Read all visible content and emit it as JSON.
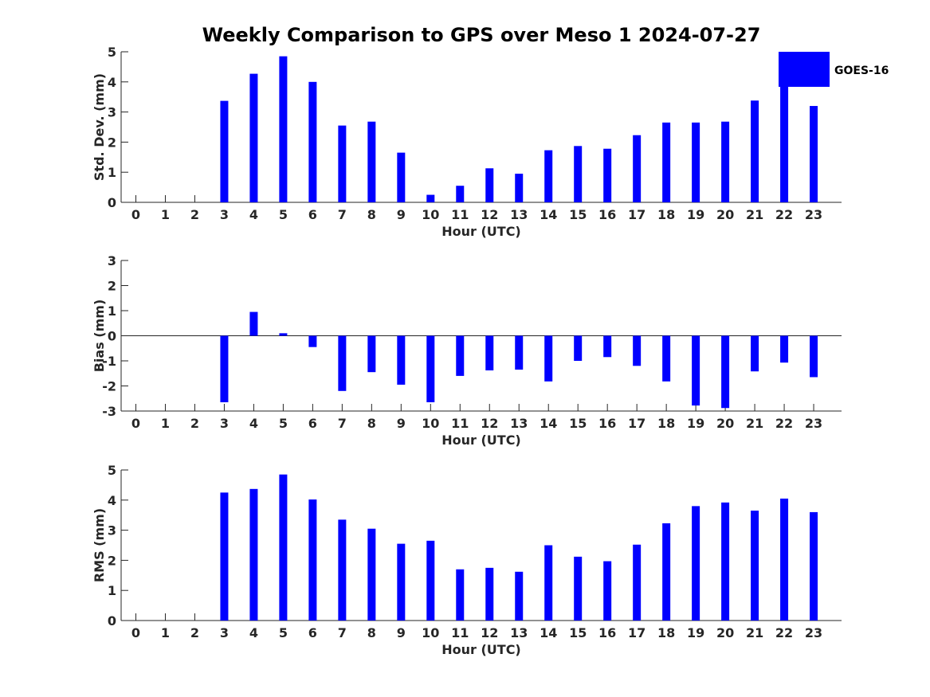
{
  "chart_data": {
    "title": "Weekly Comparison to GPS over Meso 1 2024-07-27",
    "legend": {
      "label": "GOES-16",
      "color": "#0000ff",
      "placement": "top-right"
    },
    "bar_color": "#0000ff",
    "categories": [
      "0",
      "1",
      "2",
      "3",
      "4",
      "5",
      "6",
      "7",
      "8",
      "9",
      "10",
      "11",
      "12",
      "13",
      "14",
      "15",
      "16",
      "17",
      "18",
      "19",
      "20",
      "21",
      "22",
      "23"
    ],
    "panels": [
      {
        "type": "bar",
        "ylabel": "Std. Dev. (mm)",
        "xlabel": "Hour (UTC)",
        "ylim": [
          0,
          5
        ],
        "yticks": [
          "0",
          "1",
          "2",
          "3",
          "4",
          "5"
        ],
        "values": [
          null,
          null,
          null,
          3.37,
          4.27,
          4.85,
          4.0,
          2.55,
          2.68,
          1.65,
          0.25,
          0.55,
          1.13,
          0.95,
          1.73,
          1.87,
          1.78,
          2.23,
          2.65,
          2.65,
          2.68,
          3.38,
          3.85,
          3.2
        ]
      },
      {
        "type": "bar",
        "ylabel": "Bias (mm)",
        "xlabel": "Hour (UTC)",
        "ylim": [
          -3,
          3
        ],
        "yticks": [
          "-3",
          "-2",
          "-1",
          "0",
          "1",
          "2",
          "3"
        ],
        "values": [
          null,
          null,
          null,
          -2.65,
          0.95,
          0.1,
          -0.45,
          -2.2,
          -1.45,
          -1.95,
          -2.65,
          -1.6,
          -1.38,
          -1.35,
          -1.82,
          -1.0,
          -0.85,
          -1.2,
          -1.82,
          -2.78,
          -2.88,
          -1.42,
          -1.07,
          -1.65
        ]
      },
      {
        "type": "bar",
        "ylabel": "RMS (mm)",
        "xlabel": "Hour (UTC)",
        "ylim": [
          0,
          5
        ],
        "yticks": [
          "0",
          "1",
          "2",
          "3",
          "4",
          "5"
        ],
        "values": [
          null,
          null,
          null,
          4.25,
          4.37,
          4.85,
          4.02,
          3.35,
          3.05,
          2.55,
          2.65,
          1.7,
          1.75,
          1.62,
          2.5,
          2.12,
          1.97,
          2.52,
          3.23,
          3.8,
          3.92,
          3.65,
          4.05,
          3.6
        ]
      }
    ]
  }
}
